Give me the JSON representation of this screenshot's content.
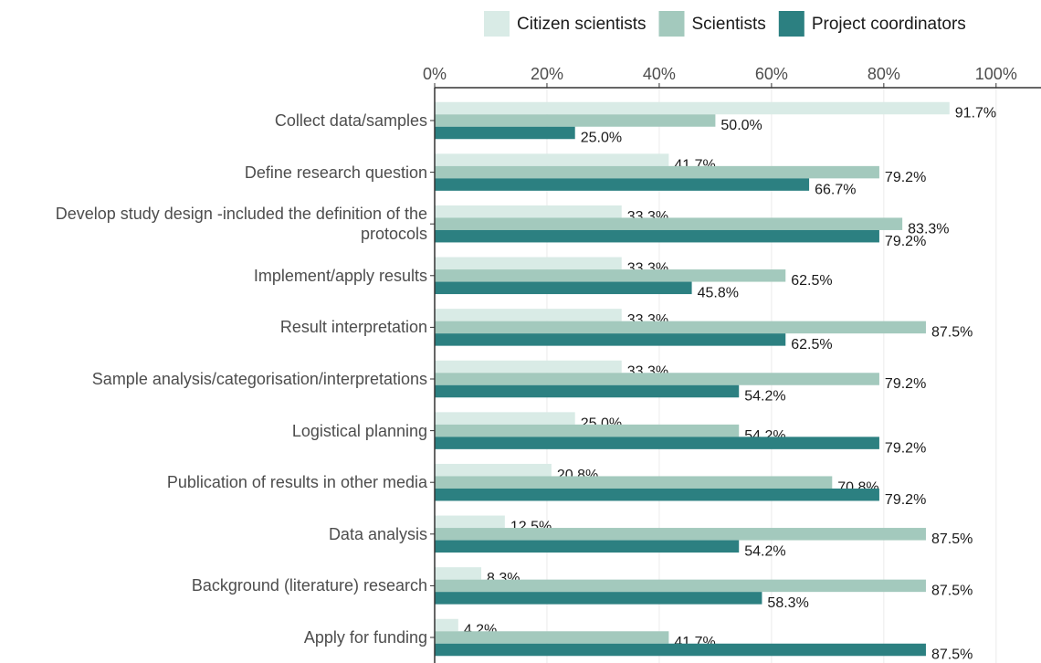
{
  "chart_data": {
    "type": "bar",
    "orientation": "horizontal",
    "categories": [
      "Collect data/samples",
      "Define research question",
      "Develop study design -included the definition of the protocols",
      "Implement/apply results",
      "Result interpretation",
      "Sample analysis/categorisation/interpretations",
      "Logistical planning",
      "Publication of results in other media",
      "Data analysis",
      "Background (literature) research",
      "Apply for funding"
    ],
    "series": [
      {
        "name": "Citizen scientists",
        "color": "#d9ebe6",
        "values": [
          91.7,
          41.7,
          33.3,
          33.3,
          33.3,
          33.3,
          25.0,
          20.8,
          12.5,
          8.3,
          4.2
        ],
        "value_labels": [
          "91.7%",
          "41.7%",
          "33.3%",
          "33.3%",
          "33.3%",
          "33.3%",
          "25.0%",
          "20.8%",
          "12.5%",
          "8.3%",
          "4.2%"
        ]
      },
      {
        "name": "Scientists",
        "color": "#a3c9bd",
        "values": [
          50.0,
          79.2,
          83.3,
          62.5,
          87.5,
          79.2,
          54.2,
          70.8,
          87.5,
          87.5,
          41.7
        ],
        "value_labels": [
          "50.0%",
          "79.2%",
          "83.3%",
          "62.5%",
          "87.5%",
          "79.2%",
          "54.2%",
          "70.8%",
          "87.5%",
          "87.5%",
          "41.7%"
        ]
      },
      {
        "name": "Project coordinators",
        "color": "#2c8081",
        "values": [
          25.0,
          66.7,
          79.2,
          45.8,
          62.5,
          54.2,
          79.2,
          79.2,
          54.2,
          58.3,
          87.5
        ],
        "value_labels": [
          "25.0%",
          "66.7%",
          "79.2%",
          "45.8%",
          "62.5%",
          "54.2%",
          "79.2%",
          "79.2%",
          "54.2%",
          "58.3%",
          "87.5%"
        ]
      }
    ],
    "xlim": [
      0,
      108
    ],
    "xticks": [
      {
        "value": 0,
        "label": "0%"
      },
      {
        "value": 20,
        "label": "20%"
      },
      {
        "value": 40,
        "label": "40%"
      },
      {
        "value": 60,
        "label": "60%"
      },
      {
        "value": 80,
        "label": "80%"
      },
      {
        "value": 100,
        "label": "100%"
      }
    ],
    "grid": true,
    "legend": "top"
  }
}
